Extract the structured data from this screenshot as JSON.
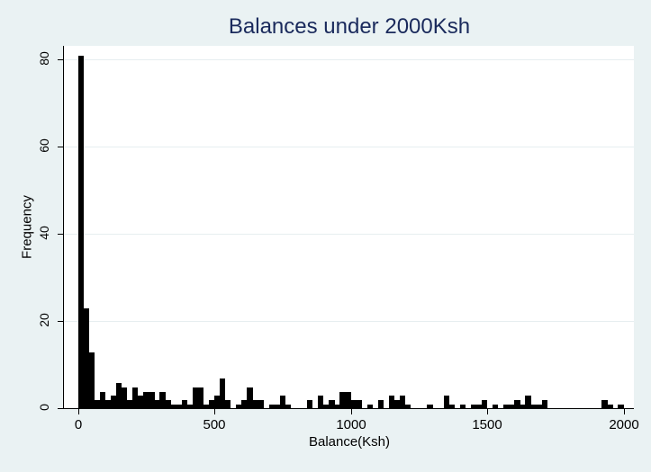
{
  "chart_data": {
    "type": "bar",
    "subtype": "histogram",
    "title": "Balances under 2000Ksh",
    "xlabel": "Balance(Ksh)",
    "ylabel": "Frequency",
    "xlim": [
      0,
      2000
    ],
    "ylim": [
      0,
      80
    ],
    "bin_width": 20,
    "x_ticks": [
      0,
      500,
      1000,
      1500,
      2000
    ],
    "y_ticks": [
      0,
      20,
      40,
      60,
      80
    ],
    "grid": "horizontal",
    "bar_color": "#000000",
    "values": [
      81,
      23,
      13,
      2,
      4,
      2,
      3,
      6,
      5,
      2,
      5,
      3,
      4,
      4,
      2,
      4,
      2,
      1,
      1,
      2,
      1,
      5,
      5,
      1,
      2,
      3,
      7,
      2,
      0,
      1,
      2,
      5,
      2,
      2,
      0,
      1,
      1,
      3,
      1,
      0,
      0,
      0,
      2,
      0,
      3,
      1,
      2,
      1,
      4,
      4,
      2,
      2,
      0,
      1,
      0,
      2,
      0,
      3,
      2,
      3,
      1,
      0,
      0,
      0,
      1,
      0,
      0,
      3,
      1,
      0,
      1,
      0,
      1,
      1,
      2,
      0,
      1,
      0,
      1,
      1,
      2,
      1,
      3,
      1,
      1,
      2,
      0,
      0,
      0,
      0,
      0,
      0,
      0,
      0,
      0,
      0,
      2,
      1,
      0,
      1
    ]
  },
  "labels": {
    "title": "Balances under 2000Ksh",
    "xlabel": "Balance(Ksh)",
    "ylabel": "Frequency",
    "x_ticks": [
      "0",
      "500",
      "1000",
      "1500",
      "2000"
    ],
    "y_ticks": [
      "0",
      "20",
      "40",
      "60",
      "80"
    ]
  },
  "colors": {
    "background": "#eaf2f3",
    "plot_background": "#ffffff",
    "title": "#1a2a5c",
    "bars": "#000000"
  }
}
